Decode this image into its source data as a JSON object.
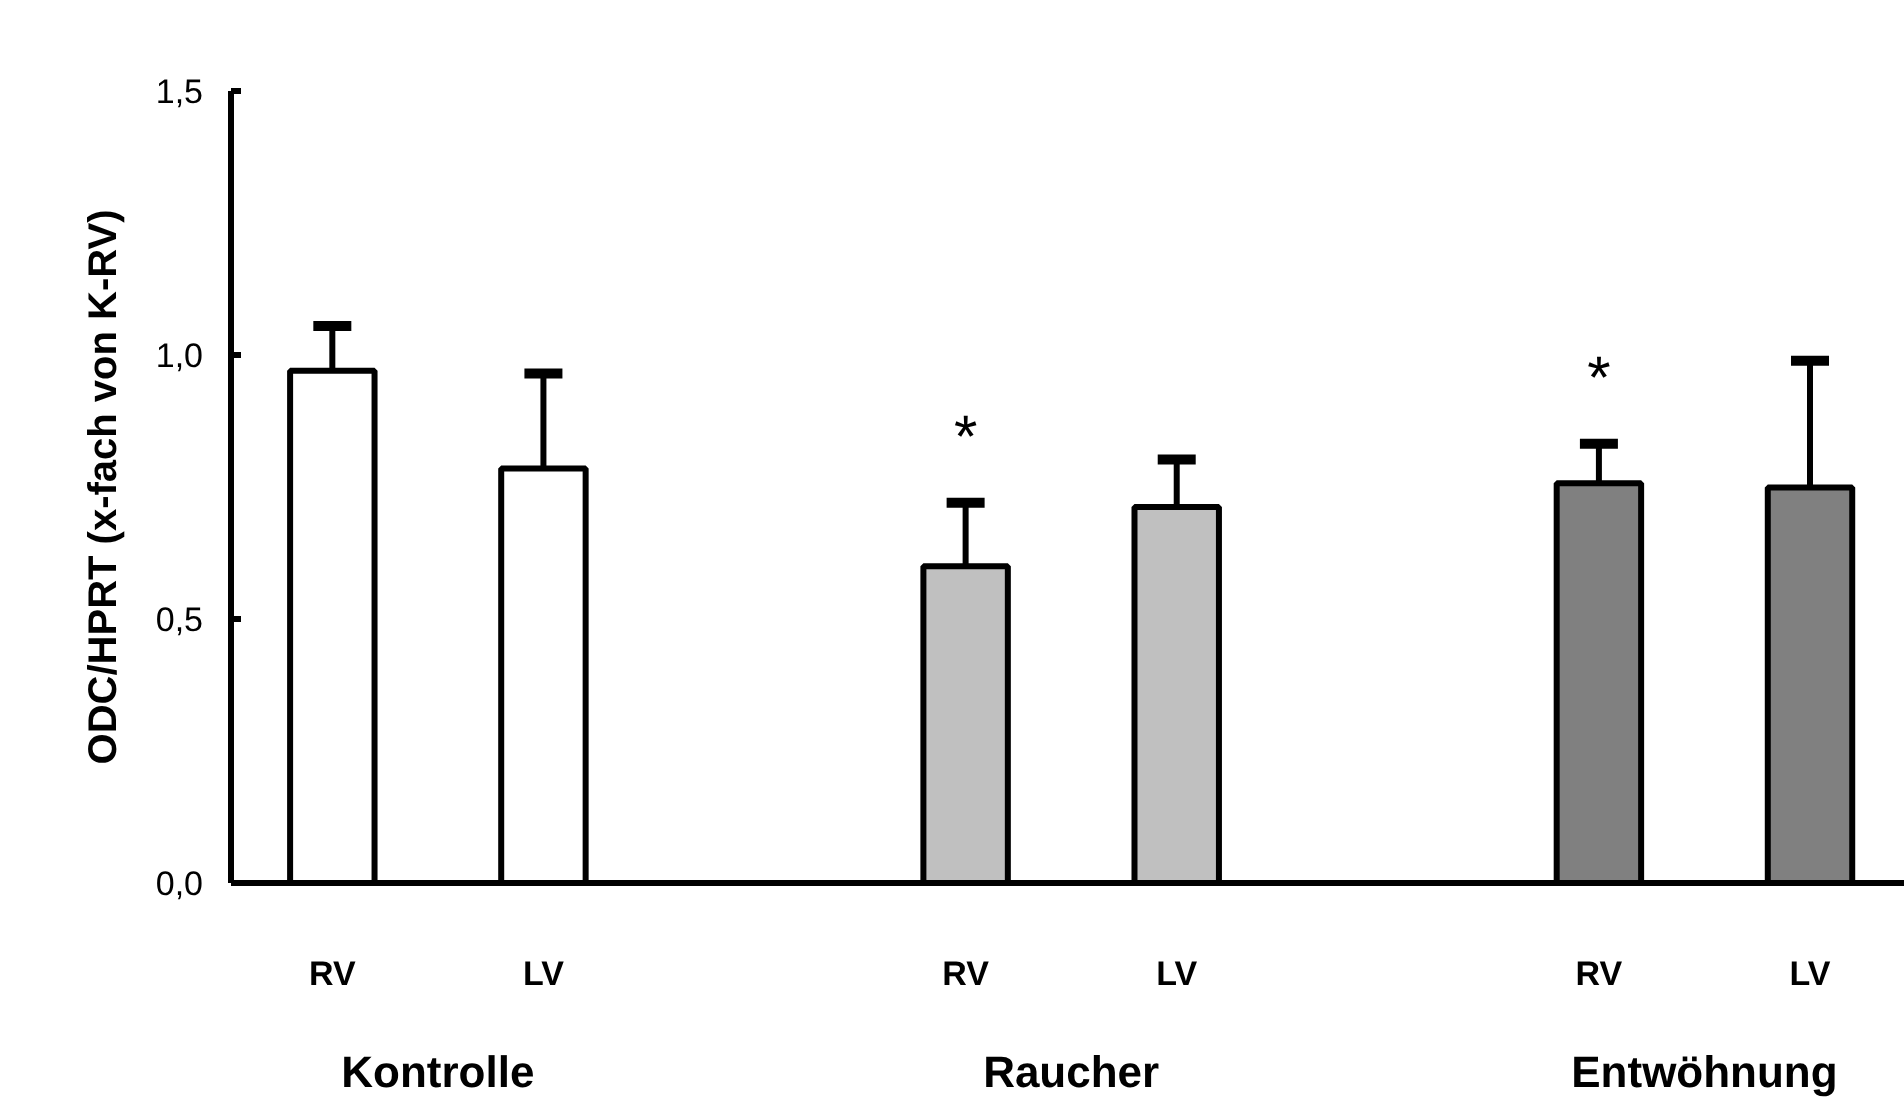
{
  "chart_data": {
    "type": "bar",
    "ylabel": "ODC/HPRT (x-fach von K-RV)",
    "categories": [
      "RV",
      "LV",
      "RV",
      "LV",
      "RV",
      "LV"
    ],
    "values": [
      0.97,
      0.785,
      0.6,
      0.712,
      0.757,
      0.749
    ],
    "colors": [
      "#ffffff",
      "#ffffff",
      "#c0c0c0",
      "#c0c0c0",
      "#808080",
      "#808080"
    ],
    "errors": [
      [
        0.97,
        1.055
      ],
      [
        0.785,
        0.965
      ],
      [
        0.6,
        0.72
      ],
      [
        0.712,
        0.802
      ],
      [
        0.757,
        0.832
      ],
      [
        0.749,
        0.989
      ]
    ],
    "ylim": [
      0,
      1.5
    ],
    "yticks": [
      {
        "value": 0,
        "label": "0,0"
      },
      {
        "value": 0.5,
        "label": "0,5"
      },
      {
        "value": 1.0,
        "label": "1,0"
      },
      {
        "value": 1.5,
        "label": "1,5"
      }
    ],
    "grid": false,
    "annotations": [
      "Kontrolle",
      "Raucher",
      "Entwöhnung",
      "*",
      "*"
    ]
  }
}
